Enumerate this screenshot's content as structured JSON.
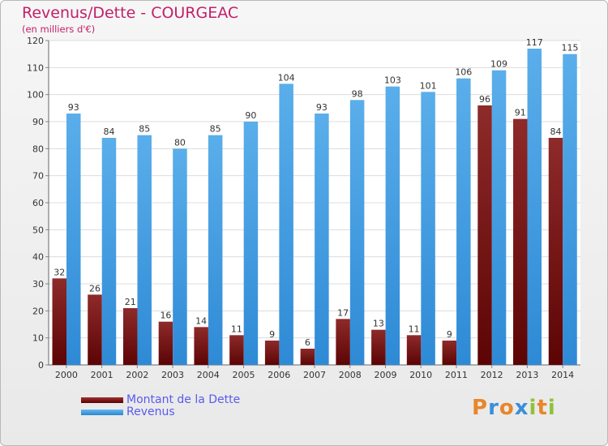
{
  "header": {
    "title": "Revenus/Dette - COURGEAC",
    "subtitle": "(en milliers d'€)"
  },
  "chart_data": {
    "type": "bar",
    "title": "Revenus/Dette - COURGEAC",
    "subtitle": "(en milliers d'€)",
    "xlabel": "",
    "ylabel": "",
    "categories": [
      "2000",
      "2001",
      "2002",
      "2003",
      "2004",
      "2005",
      "2006",
      "2007",
      "2008",
      "2009",
      "2010",
      "2011",
      "2012",
      "2013",
      "2014"
    ],
    "series": [
      {
        "name": "Montant de la Dette",
        "color": "#8a1a1a",
        "values": [
          32,
          26,
          21,
          16,
          14,
          11,
          9,
          6,
          17,
          13,
          11,
          9,
          96,
          91,
          84
        ]
      },
      {
        "name": "Revenus",
        "color": "#3d9ae0",
        "values": [
          93,
          84,
          85,
          80,
          85,
          90,
          104,
          93,
          98,
          103,
          101,
          106,
          109,
          117,
          115
        ]
      }
    ],
    "ylim": [
      0,
      120
    ],
    "yticks": [
      0,
      10,
      20,
      30,
      40,
      50,
      60,
      70,
      80,
      90,
      100,
      110,
      120
    ],
    "grid": true,
    "legend": "bottom-left"
  },
  "legend": {
    "items": [
      {
        "label": "Montant de la Dette",
        "color": "#7a1010"
      },
      {
        "label": "Revenus",
        "color": "#3d9ae0"
      }
    ]
  },
  "brand": {
    "letters": [
      "P",
      "r",
      "o",
      "x",
      "i",
      "t",
      "i"
    ],
    "colors": [
      "#e8862a",
      "#3a8fd8",
      "#e8862a",
      "#3a8fd8",
      "#8fc23a",
      "#e8862a",
      "#8fc23a"
    ]
  }
}
